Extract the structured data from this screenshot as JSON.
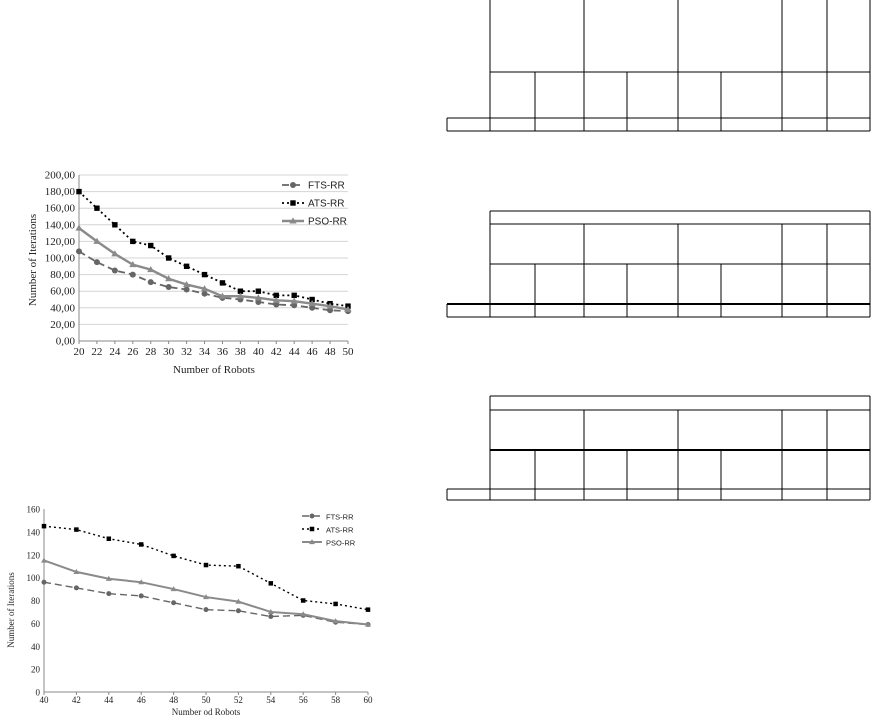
{
  "chart_data": [
    {
      "type": "line",
      "title": "",
      "xlabel": "Number of Robots",
      "ylabel": "Number of Iterations",
      "x": [
        20,
        22,
        24,
        26,
        28,
        30,
        32,
        34,
        36,
        38,
        40,
        42,
        44,
        46,
        48,
        50
      ],
      "xlim": [
        20,
        50
      ],
      "ylim": [
        0,
        200
      ],
      "y_ticks": [
        "0,00",
        "20,00",
        "40,00",
        "60,00",
        "80,00",
        "100,00",
        "120,00",
        "140,00",
        "160,00",
        "180,00",
        "200,00"
      ],
      "grid": true,
      "legend_position": "top-right",
      "series": [
        {
          "name": "FTS-RR",
          "color": "#666666",
          "marker": "circle",
          "dash": "dashed",
          "values": [
            108,
            95,
            85,
            80,
            71,
            65,
            62,
            57,
            52,
            50,
            47,
            44,
            43,
            40,
            37,
            36
          ]
        },
        {
          "name": "ATS-RR",
          "color": "#000000",
          "marker": "square",
          "dash": "dotted",
          "values": [
            180,
            160,
            140,
            120,
            115,
            100,
            90,
            80,
            70,
            60,
            60,
            55,
            55,
            50,
            45,
            42
          ]
        },
        {
          "name": "PSO-RR",
          "color": "#8a8a8a",
          "marker": "triangle",
          "dash": "solid",
          "values": [
            136,
            120,
            105,
            92,
            86,
            75,
            68,
            63,
            54,
            54,
            52,
            49,
            48,
            45,
            42,
            38
          ]
        }
      ]
    },
    {
      "type": "line",
      "title": "",
      "xlabel": "Number od Robots",
      "ylabel": "Number of Iterations",
      "x": [
        40,
        42,
        44,
        46,
        48,
        50,
        52,
        54,
        56,
        58,
        60
      ],
      "xlim": [
        40,
        60
      ],
      "ylim": [
        0,
        160
      ],
      "y_ticks": [
        "0",
        "20",
        "40",
        "60",
        "80",
        "100",
        "120",
        "140",
        "160"
      ],
      "grid": false,
      "legend_position": "top-right",
      "series": [
        {
          "name": "FTS-RR",
          "color": "#666666",
          "marker": "circle",
          "dash": "dashed",
          "values": [
            96,
            91,
            86,
            84,
            78,
            72,
            71,
            66,
            67,
            61,
            59
          ]
        },
        {
          "name": "ATS-RR",
          "color": "#000000",
          "marker": "square",
          "dash": "dotted",
          "values": [
            145,
            142,
            134,
            129,
            119,
            111,
            110,
            95,
            80,
            77,
            72
          ]
        },
        {
          "name": "PSO-RR",
          "color": "#8a8a8a",
          "marker": "triangle",
          "dash": "solid",
          "values": [
            115,
            105,
            99,
            96,
            90,
            83,
            79,
            70,
            68,
            62,
            59
          ]
        }
      ]
    }
  ]
}
